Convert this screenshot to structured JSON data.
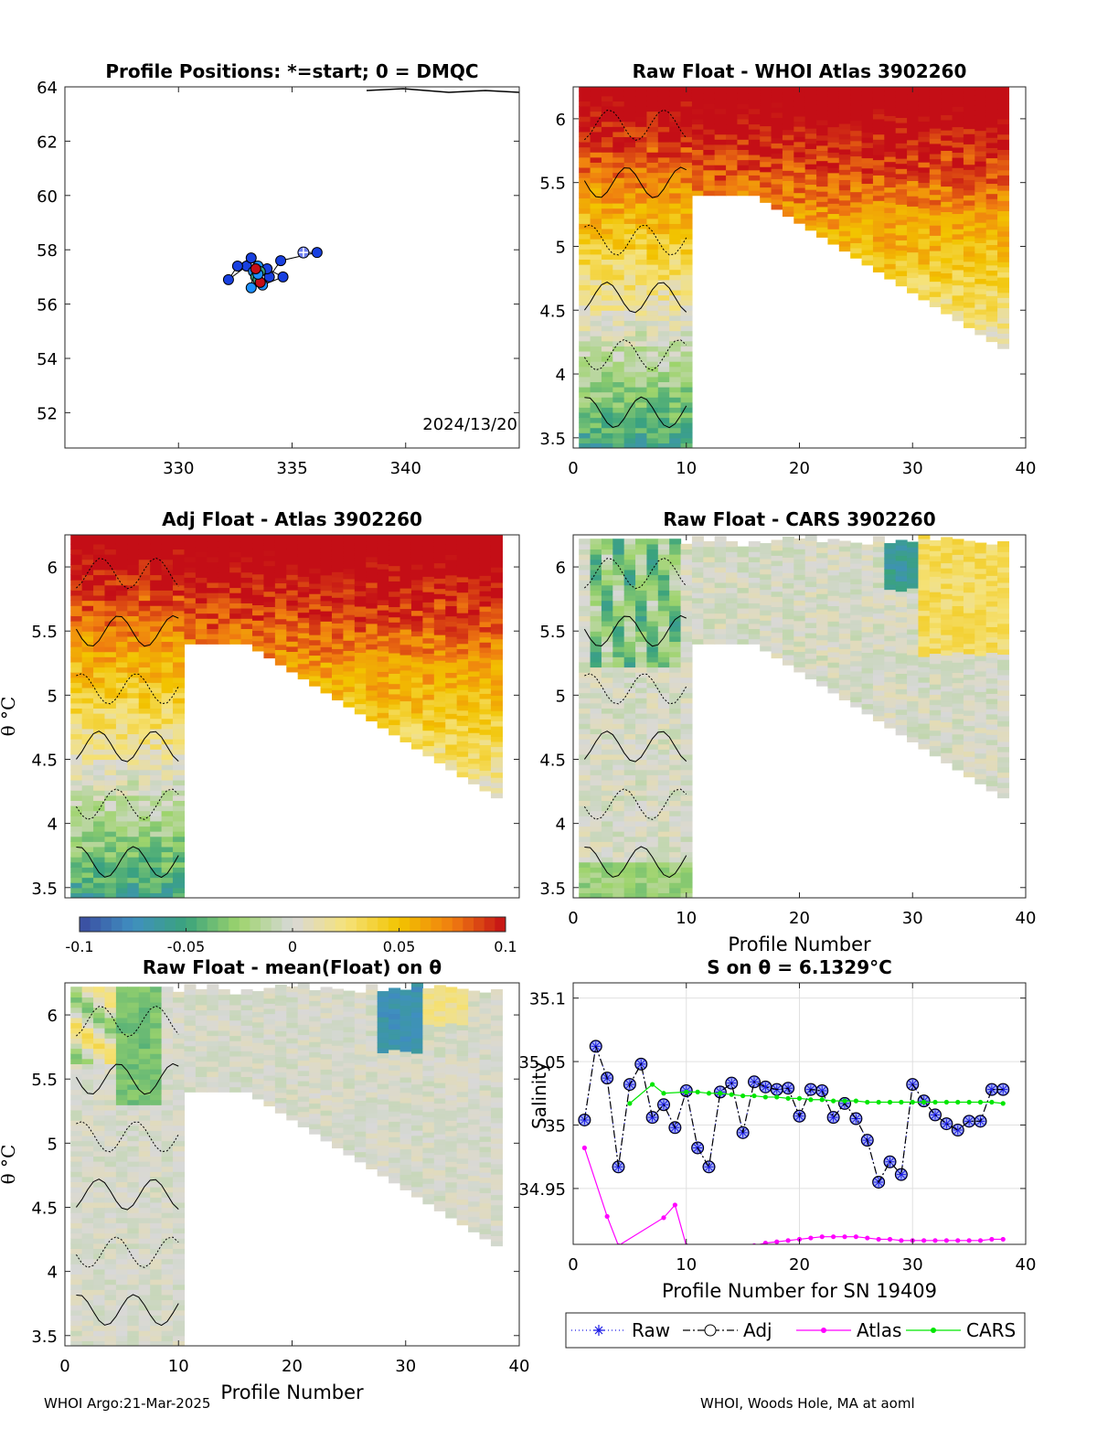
{
  "footer": {
    "left": "WHOI Argo:21-Mar-2025",
    "right": "WHOI, Woods Hole, MA at aoml"
  },
  "colorbar": {
    "ticks": [
      "-0.1",
      "-0.05",
      "0",
      "0.05",
      "0.1"
    ],
    "range": [
      -0.1,
      0.1
    ],
    "colors": [
      "#3b4ba0",
      "#3f8fc0",
      "#3aa37c",
      "#9ed46c",
      "#d8d8d8",
      "#f5e27a",
      "#f2c400",
      "#f07d10",
      "#c40e16"
    ]
  },
  "chart_data": [
    {
      "id": "map",
      "type": "scatter",
      "title": "Profile Positions: *=start; 0 = DMQC",
      "xlim": [
        325,
        345
      ],
      "ylim": [
        50.7,
        64
      ],
      "xticks": [
        "330",
        "335",
        "340"
      ],
      "yticks": [
        "52",
        "54",
        "56",
        "58",
        "60",
        "62",
        "64"
      ],
      "annotation": "2024/13/20",
      "track_lon": [
        335.5,
        336.1,
        334.5,
        334.0,
        333.0,
        332.2,
        332.6,
        333.2,
        333.9,
        334.6,
        333.7,
        333.2,
        333.3,
        333.5,
        333.6,
        333.4,
        333.5,
        333.6,
        333.5,
        333.4
      ],
      "track_lat": [
        57.9,
        57.9,
        57.6,
        57.0,
        57.4,
        56.9,
        57.4,
        57.7,
        57.3,
        57.0,
        56.7,
        56.6,
        57.2,
        57.4,
        57.2,
        57.0,
        56.9,
        56.8,
        57.1,
        57.3
      ]
    },
    {
      "id": "raw-atlas",
      "type": "heatmap",
      "title": "Raw Float - WHOI Atlas  3902260",
      "xlim": [
        0,
        40
      ],
      "ylim": [
        3.42,
        6.25
      ],
      "xticks": [
        "0",
        "10",
        "20",
        "30",
        "40"
      ],
      "yticks": [
        "3.5",
        "4",
        "4.5",
        "5",
        "5.5",
        "6"
      ]
    },
    {
      "id": "adj-atlas",
      "type": "heatmap",
      "title": "Adj Float - Atlas  3902260",
      "ylabel": "θ °C",
      "xlim": [
        0,
        40
      ],
      "ylim": [
        3.42,
        6.25
      ],
      "xticks": [],
      "yticks": [
        "3.5",
        "4",
        "4.5",
        "5",
        "5.5",
        "6"
      ]
    },
    {
      "id": "raw-cars",
      "type": "heatmap",
      "title": "Raw Float - CARS  3902260",
      "xlabel": "Profile Number",
      "xlim": [
        0,
        40
      ],
      "ylim": [
        3.42,
        6.25
      ],
      "xticks": [
        "0",
        "10",
        "20",
        "30",
        "40"
      ],
      "yticks": [
        "3.5",
        "4",
        "4.5",
        "5",
        "5.5",
        "6"
      ]
    },
    {
      "id": "raw-mean",
      "type": "heatmap",
      "title": "Raw Float - mean(Float) on θ",
      "xlabel": "Profile Number",
      "ylabel": "θ °C",
      "xlim": [
        0,
        40
      ],
      "ylim": [
        3.42,
        6.25
      ],
      "xticks": [
        "0",
        "10",
        "20",
        "30",
        "40"
      ],
      "yticks": [
        "3.5",
        "4",
        "4.5",
        "5",
        "5.5",
        "6"
      ]
    },
    {
      "id": "salinity",
      "type": "line",
      "title": "S on θ = 6.1329°C",
      "xlabel": "Profile Number for SN 19409",
      "ylabel": "Salinity",
      "xlim": [
        0,
        40
      ],
      "ylim": [
        34.906,
        35.112
      ],
      "xticks": [
        "0",
        "10",
        "20",
        "30",
        "40"
      ],
      "yticks": [
        "34.95",
        "35",
        "35.05",
        "35.1"
      ],
      "legend": [
        "Raw",
        "Adj",
        "Atlas",
        "CARS"
      ],
      "legend_placement": "below",
      "series": [
        {
          "name": "Raw",
          "x": [
            1,
            2,
            3,
            4,
            5,
            6,
            7,
            8,
            9,
            10,
            11,
            12,
            13,
            14,
            15,
            16,
            17,
            18,
            19,
            20,
            21,
            22,
            23,
            24,
            25,
            26,
            27,
            28,
            29,
            30,
            31,
            32,
            33,
            34,
            35,
            36,
            37,
            38
          ],
          "y": [
            35.004,
            35.062,
            35.037,
            34.967,
            35.032,
            35.048,
            35.006,
            35.016,
            34.998,
            35.027,
            34.982,
            34.967,
            35.026,
            35.033,
            34.994,
            35.034,
            35.03,
            35.028,
            35.029,
            35.007,
            35.028,
            35.027,
            35.006,
            35.017,
            35.005,
            34.988,
            34.955,
            34.971,
            34.961,
            35.032,
            35.019,
            35.008,
            35.001,
            34.996,
            35.003,
            35.003,
            35.028,
            35.028
          ],
          "color": "#1a1ae6"
        },
        {
          "name": "Adj",
          "x": [
            1,
            2,
            3,
            4,
            5,
            6,
            7,
            8,
            9,
            10,
            11,
            12,
            13,
            14,
            15,
            16,
            17,
            18,
            19,
            20,
            21,
            22,
            23,
            24,
            25,
            26,
            27,
            28,
            29,
            30,
            31,
            32,
            33,
            34,
            35,
            36,
            37,
            38
          ],
          "y": [
            35.004,
            35.062,
            35.037,
            34.967,
            35.032,
            35.048,
            35.006,
            35.016,
            34.998,
            35.027,
            34.982,
            34.967,
            35.026,
            35.033,
            34.994,
            35.034,
            35.03,
            35.028,
            35.029,
            35.007,
            35.028,
            35.027,
            35.006,
            35.017,
            35.005,
            34.988,
            34.955,
            34.971,
            34.961,
            35.032,
            35.019,
            35.008,
            35.001,
            34.996,
            35.003,
            35.003,
            35.028,
            35.028
          ],
          "color": "#000000"
        },
        {
          "name": "Atlas",
          "x": [
            1,
            3,
            4,
            8,
            9,
            10,
            11,
            12,
            13,
            14,
            15,
            16,
            17,
            18,
            19,
            20,
            21,
            22,
            23,
            24,
            25,
            26,
            27,
            28,
            29,
            30,
            31,
            32,
            33,
            34,
            35,
            36,
            37,
            38
          ],
          "y": [
            34.982,
            34.928,
            34.905,
            34.927,
            34.937,
            34.905,
            34.904,
            34.904,
            34.904,
            34.904,
            34.904,
            34.905,
            34.907,
            34.908,
            34.909,
            34.91,
            34.911,
            34.912,
            34.912,
            34.912,
            34.912,
            34.911,
            34.91,
            34.91,
            34.909,
            34.909,
            34.909,
            34.909,
            34.909,
            34.909,
            34.909,
            34.909,
            34.91,
            34.91
          ],
          "color": "#ff00ff"
        },
        {
          "name": "CARS",
          "x": [
            5,
            7,
            8,
            10,
            11,
            12,
            13,
            14,
            15,
            16,
            17,
            18,
            19,
            20,
            21,
            22,
            23,
            24,
            25,
            26,
            27,
            28,
            29,
            30,
            31,
            32,
            33,
            34,
            35,
            36,
            37,
            38
          ],
          "y": [
            35.017,
            35.032,
            35.025,
            35.026,
            35.026,
            35.025,
            35.025,
            35.024,
            35.023,
            35.023,
            35.022,
            35.022,
            35.021,
            35.021,
            35.02,
            35.02,
            35.019,
            35.019,
            35.019,
            35.018,
            35.018,
            35.018,
            35.018,
            35.018,
            35.018,
            35.018,
            35.018,
            35.018,
            35.018,
            35.018,
            35.018,
            35.017
          ],
          "color": "#00e600"
        }
      ]
    }
  ]
}
